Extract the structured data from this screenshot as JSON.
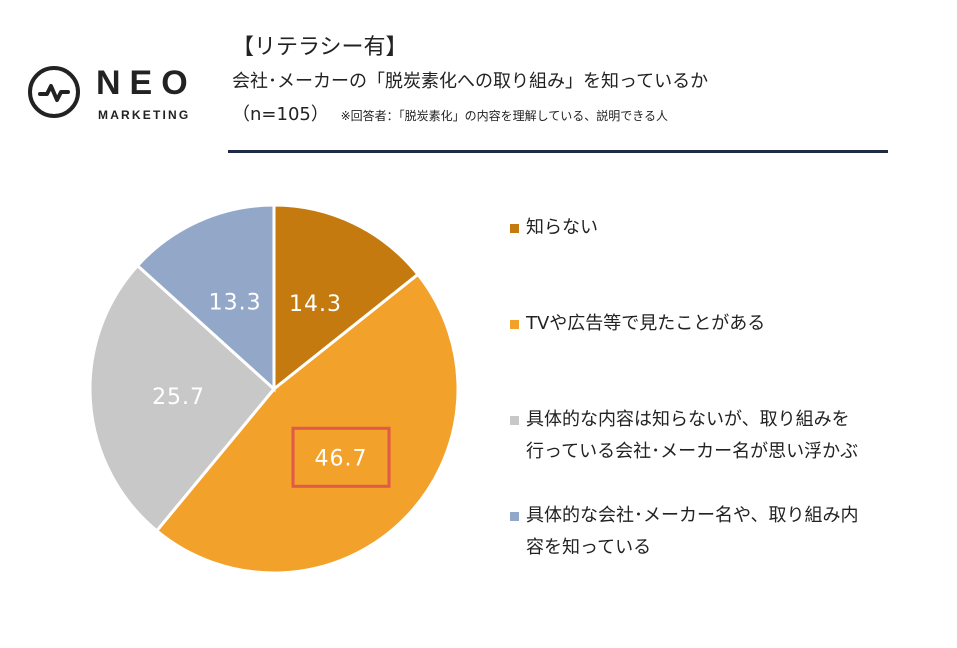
{
  "logo": {
    "word": "NEO",
    "sub": "MARKETING"
  },
  "header": {
    "title": "【リテラシー有】",
    "subtitle": "会社･メーカーの「脱炭素化への取り組み」を知っているか",
    "sample": "（n=105）",
    "note": "※回答者：「脱炭素化」の内容を理解している、説明できる人"
  },
  "chart_data": {
    "type": "pie",
    "categories": [
      "知らない",
      "TVや広告等で見たことがある",
      "具体的な内容は知らないが、取り組みを行っている会社･メーカー名が思い浮かぶ",
      "具体的な会社･メーカー名や、取り組み内容を知っている"
    ],
    "values": [
      14.3,
      46.7,
      25.7,
      13.3
    ],
    "labels": [
      "14.3",
      "46.7",
      "25.7",
      "13.3"
    ],
    "colors": [
      "#C47A0E",
      "#F2A12B",
      "#C8C8C8",
      "#93A8C8"
    ],
    "highlight_index": 1,
    "highlight_color": "#E05A4A",
    "start": "12 o'clock, clockwise",
    "legend_position": "right"
  },
  "legend": {
    "items": [
      {
        "lines": [
          "知らない"
        ]
      },
      {
        "lines": [
          "TVや広告等で見たことがある"
        ]
      },
      {
        "lines": [
          "具体的な内容は知らないが、取り組みを",
          "行っている会社･メーカー名が思い浮かぶ"
        ]
      },
      {
        "lines": [
          "具体的な会社･メーカー名や、取り組み内",
          "容を知っている"
        ]
      }
    ]
  }
}
